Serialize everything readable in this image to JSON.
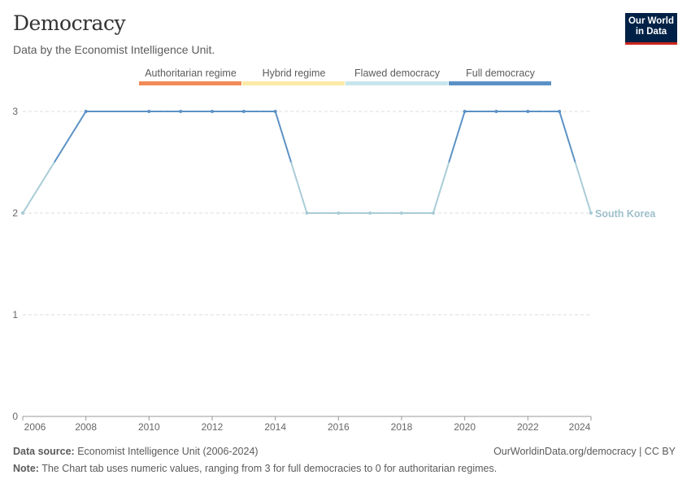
{
  "header": {
    "title": "Democracy",
    "subtitle": "Data by the Economist Intelligence Unit.",
    "logo": "Our World in Data"
  },
  "legend": [
    {
      "label": "Authoritarian regime",
      "color": "#f28a57"
    },
    {
      "label": "Hybrid regime",
      "color": "#fbe9a6"
    },
    {
      "label": "Flawed democracy",
      "color": "#c8e6ee"
    },
    {
      "label": "Full democracy",
      "color": "#5b91c4"
    }
  ],
  "chart_data": {
    "type": "line",
    "title": "Democracy",
    "x": [
      2006,
      2008,
      2010,
      2011,
      2012,
      2013,
      2014,
      2015,
      2016,
      2017,
      2018,
      2019,
      2020,
      2021,
      2022,
      2023,
      2024
    ],
    "series": [
      {
        "name": "South Korea",
        "values": [
          2,
          3,
          3,
          3,
          3,
          3,
          3,
          2,
          2,
          2,
          2,
          2,
          3,
          3,
          3,
          3,
          2
        ]
      }
    ],
    "xlim": [
      2006,
      2024
    ],
    "ylim": [
      0,
      3
    ],
    "x_ticks": [
      "2006",
      "2008",
      "2010",
      "2012",
      "2014",
      "2016",
      "2018",
      "2020",
      "2022",
      "2024"
    ],
    "y_ticks": [
      "0",
      "1",
      "2",
      "3"
    ],
    "grid": true
  },
  "footer": {
    "source_label": "Data source:",
    "source": "Economist Intelligence Unit (2006-2024)",
    "url": "OurWorldinData.org/democracy | CC BY",
    "note_label": "Note:",
    "note": "The Chart tab uses numeric values, ranging from 3 for full democracies to 0 for authoritarian regimes."
  }
}
